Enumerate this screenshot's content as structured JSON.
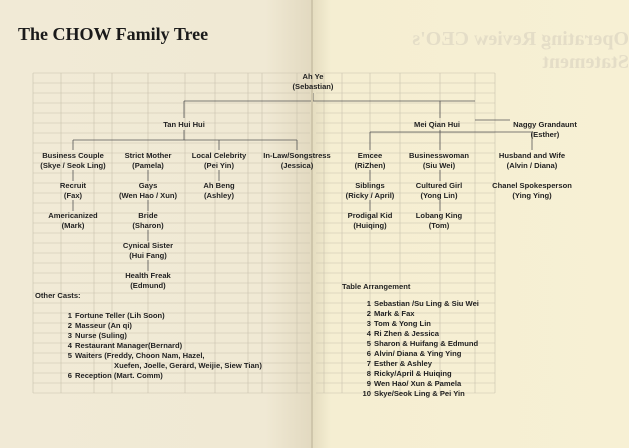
{
  "title": "The CHOW Family Tree",
  "show_through_heading": "Operating Review   CEO's Statement",
  "tree": {
    "root": {
      "role": "Ah Ye",
      "name": "(Sebastian)"
    },
    "left_branch": {
      "role": "Tan Hui Hui"
    },
    "right_branch": {
      "role": "Mei Qian Hui"
    },
    "aside": {
      "role": "Naggy Grandaunt",
      "name": "(Esther)"
    },
    "left_children": [
      {
        "role": "Business Couple",
        "name": "(Skye / Seok Ling)"
      },
      {
        "role": "Strict Mother",
        "name": "(Pamela)"
      },
      {
        "role": "Local Celebrity",
        "name": "(Pei Yin)"
      },
      {
        "role": "In-Law/Songstress",
        "name": "(Jessica)"
      }
    ],
    "left_descendants": [
      {
        "role": "Recruit",
        "name": "(Fax)"
      },
      {
        "role": "Americanized",
        "name": "(Mark)"
      },
      {
        "role": "Gays",
        "name": "(Wen Hao / Xun)"
      },
      {
        "role": "Bride",
        "name": "(Sharon)"
      },
      {
        "role": "Cynical Sister",
        "name": "(Hui Fang)"
      },
      {
        "role": "Health Freak",
        "name": "(Edmund)"
      },
      {
        "role": "Ah Beng",
        "name": "(Ashley)"
      }
    ],
    "right_children": [
      {
        "role": "Emcee",
        "name": "(RiZhen)"
      },
      {
        "role": "Businesswoman",
        "name": "(Siu Wei)"
      },
      {
        "role": "Husband and Wife",
        "name": "(Alvin / Diana)"
      }
    ],
    "right_descendants": [
      {
        "role": "Siblings",
        "name": "(Ricky / April)"
      },
      {
        "role": "Prodigal Kid",
        "name": "(Huiqing)"
      },
      {
        "role": "Cultured Girl",
        "name": "(Yong Lin)"
      },
      {
        "role": "Lobang King",
        "name": "(Tom)"
      },
      {
        "role": "Chanel Spokesperson",
        "name": "(Ying Ying)"
      }
    ]
  },
  "other_casts": {
    "heading": "Other Casts:",
    "items": [
      {
        "no": "1",
        "text": "Fortune Teller (Lih Soon)"
      },
      {
        "no": "2",
        "text": "Masseur (An qi)"
      },
      {
        "no": "3",
        "text": "Nurse (Suling)"
      },
      {
        "no": "4",
        "text": "Restaurant Manager(Bernard)"
      },
      {
        "no": "5",
        "text": "Waiters (Freddy, Choon Nam, Hazel,",
        "cont": "Xuefen, Joelle, Gerard, Weijie, Siew Tian)"
      },
      {
        "no": "6",
        "text": "Reception (Mart. Comm)"
      }
    ]
  },
  "table_arrangement": {
    "heading": "Table Arrangement",
    "items": [
      {
        "no": "1",
        "text": "Sebastian /Su Ling & Siu Wei"
      },
      {
        "no": "2",
        "text": "Mark & Fax"
      },
      {
        "no": "3",
        "text": "Tom & Yong Lin"
      },
      {
        "no": "4",
        "text": "Ri Zhen & Jessica"
      },
      {
        "no": "5",
        "text": "Sharon & Huifang & Edmund"
      },
      {
        "no": "6",
        "text": "Alvin/ Diana & Ying Ying"
      },
      {
        "no": "7",
        "text": "Esther & Ashley"
      },
      {
        "no": "8",
        "text": "Ricky/April & Huiqing"
      },
      {
        "no": "9",
        "text": "Wen Hao/ Xun & Pamela"
      },
      {
        "no": "10",
        "text": "Skye/Seok Ling & Pei Yin"
      }
    ]
  }
}
